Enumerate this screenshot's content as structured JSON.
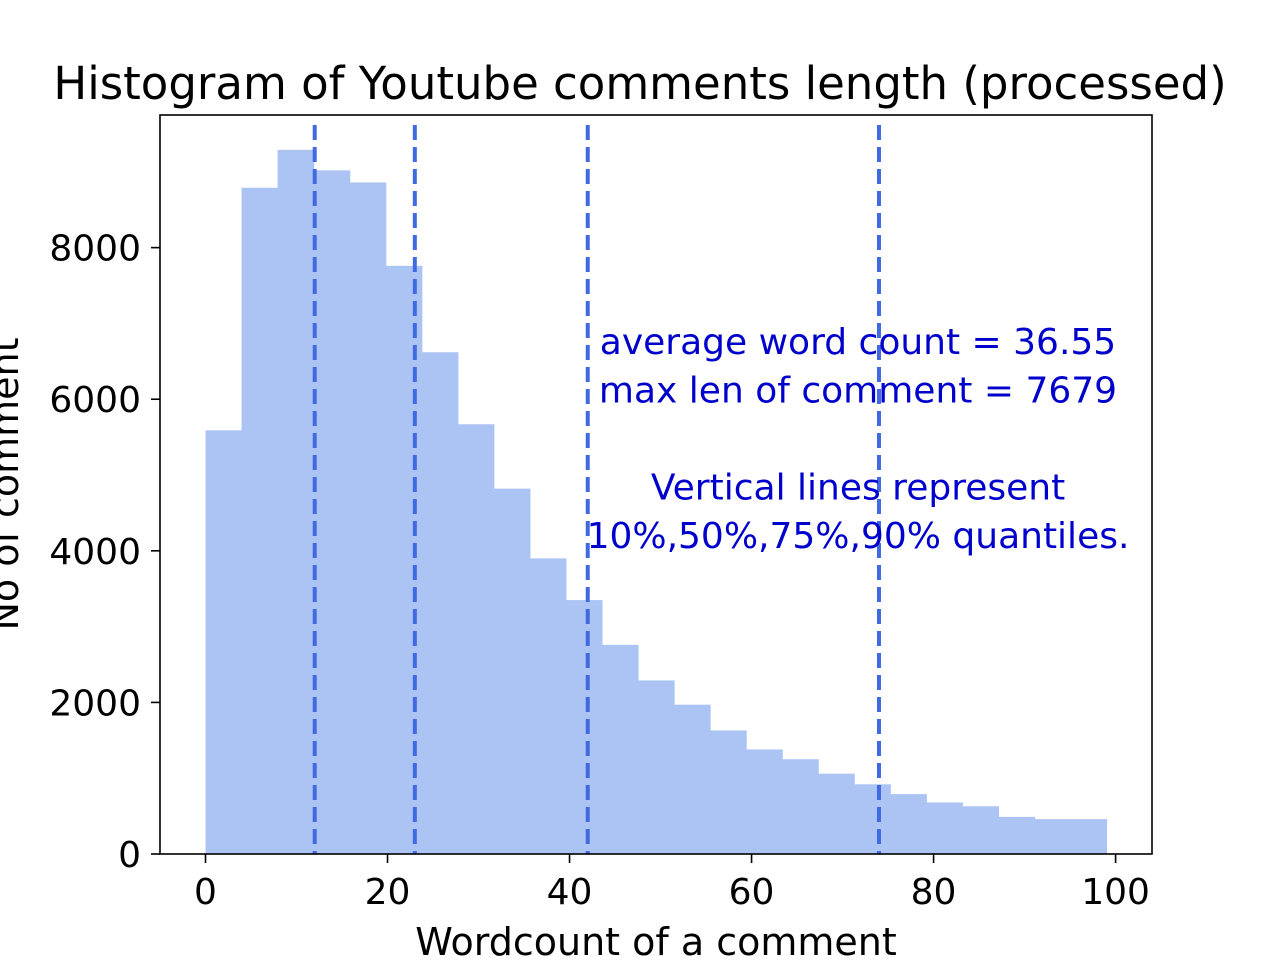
{
  "chart_data": {
    "type": "bar",
    "title": "Histogram of Youtube comments length (processed)",
    "xlabel": "Wordcount of a comment",
    "ylabel": "No of comment",
    "xlim": [
      -5,
      104
    ],
    "ylim": [
      0,
      9750
    ],
    "x_ticks": [
      0,
      20,
      40,
      60,
      80,
      100
    ],
    "y_ticks": [
      0,
      2000,
      4000,
      6000,
      8000
    ],
    "bin_width": 3.96,
    "bin_edges_start": [
      0,
      3.96,
      7.92,
      11.88,
      15.84,
      19.8,
      23.76,
      27.72,
      31.68,
      35.64,
      39.6,
      43.56,
      47.52,
      51.48,
      55.44,
      59.4,
      63.36,
      67.32,
      71.28,
      75.24,
      79.2,
      83.16,
      87.12,
      91.08,
      95.04
    ],
    "values": [
      5590,
      8790,
      9290,
      9020,
      8860,
      7760,
      6620,
      5670,
      4820,
      3900,
      3350,
      2760,
      2290,
      1970,
      1630,
      1380,
      1250,
      1060,
      920,
      790,
      680,
      630,
      490,
      460,
      460
    ],
    "bar_color": "#abc4f4",
    "quantile_lines": [
      {
        "label": "10%",
        "x": 12
      },
      {
        "label": "50%",
        "x": 23
      },
      {
        "label": "75%",
        "x": 42
      },
      {
        "label": "90%",
        "x": 74
      }
    ],
    "quantile_line_color": "#4169e1",
    "annotation_lines": [
      "average word count = 36.55",
      " max len of comment = 7679",
      "",
      "Vertical lines represent",
      "10%,50%,75%,90% quantiles."
    ],
    "annotation_color": "#0000cd",
    "grid": false,
    "legend": "none"
  }
}
